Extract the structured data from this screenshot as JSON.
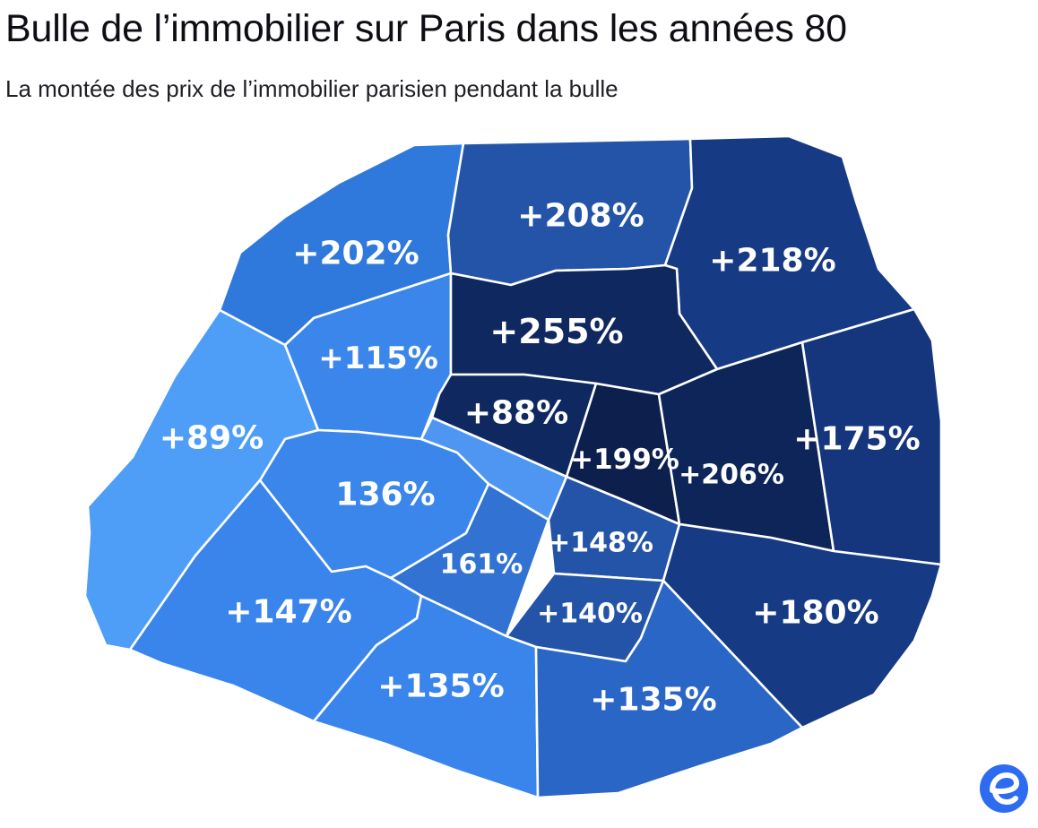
{
  "title": "Bulle de l’immobilier sur Paris dans les années 80",
  "subtitle": "La montée des prix de l’immobilier parisien pendant la bulle",
  "districts": [
    {
      "id": "nord-ouest-17",
      "label": "+202%",
      "color": "#2f79dc"
    },
    {
      "id": "nord-18",
      "label": "+208%",
      "color": "#2454a8"
    },
    {
      "id": "nord-est-19",
      "label": "+218%",
      "color": "#163a84"
    },
    {
      "id": "ouest-16",
      "label": "+89%",
      "color": "#4e9df7"
    },
    {
      "id": "ouest-8",
      "label": "+115%",
      "color": "#3b86ea"
    },
    {
      "id": "centre-nord-9-10",
      "label": "+255%",
      "color": "#0f2860"
    },
    {
      "id": "centre-2",
      "label": "+88%",
      "color": "#0f2860"
    },
    {
      "id": "centre-3",
      "label": "+199%",
      "color": "#0c1f4d"
    },
    {
      "id": "centre-11",
      "label": "+206%",
      "color": "#0d2558"
    },
    {
      "id": "est-20",
      "label": "+175%",
      "color": "#15367d"
    },
    {
      "id": "ouest-7",
      "label": "136%",
      "color": "#3b86ea"
    },
    {
      "id": "centre-6",
      "label": "161%",
      "color": "#3172d2"
    },
    {
      "id": "centre-5",
      "label": "+148%",
      "color": "#2454a8"
    },
    {
      "id": "centre-5-sud",
      "label": "+140%",
      "color": "#2454a8"
    },
    {
      "id": "est-12",
      "label": "+180%",
      "color": "#163a84"
    },
    {
      "id": "sud-ouest-15",
      "label": "+147%",
      "color": "#3a85ec"
    },
    {
      "id": "sud-14",
      "label": "+135%",
      "color": "#3a85ec"
    },
    {
      "id": "sud-13",
      "label": "+135%",
      "color": "#2a66c6"
    },
    {
      "id": "centre-1",
      "label": "",
      "color": "#4e96f2"
    }
  ],
  "logo": {
    "icon": "e-brand-logo",
    "color": "#2d6cf0"
  }
}
